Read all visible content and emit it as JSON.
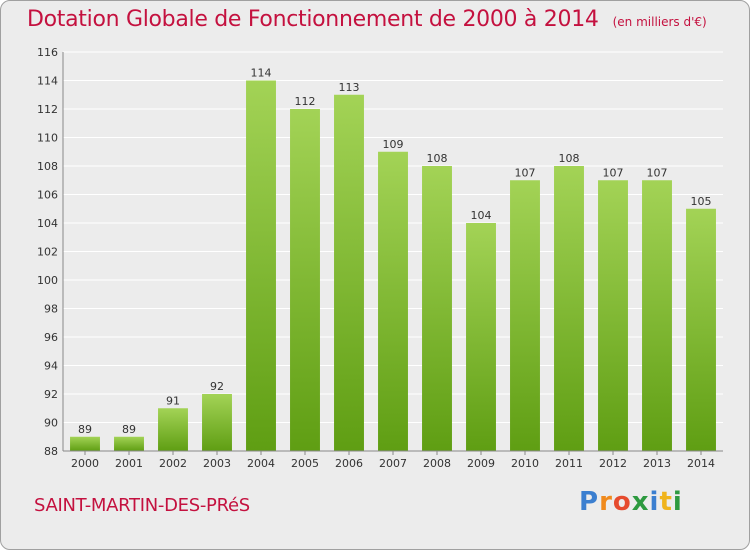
{
  "title": "Dotation Globale de Fonctionnement de 2000 à 2014",
  "unit_note": "(en milliers d'€)",
  "commune": "SAINT-MARTIN-DES-PRéS",
  "logo": "Proxiti",
  "colors": {
    "title": "#c4113f",
    "bar_light": "#a3d356",
    "bar_dark": "#5f9e13",
    "grid": "#ffffff",
    "background": "#ececec"
  },
  "chart_data": {
    "type": "bar",
    "title": "Dotation Globale de Fonctionnement de 2000 à 2014",
    "xlabel": "",
    "ylabel": "",
    "categories": [
      "2000",
      "2001",
      "2002",
      "2003",
      "2004",
      "2005",
      "2006",
      "2007",
      "2008",
      "2009",
      "2010",
      "2011",
      "2012",
      "2013",
      "2014"
    ],
    "values": [
      89,
      89,
      91,
      92,
      114,
      112,
      113,
      109,
      108,
      104,
      107,
      108,
      107,
      107,
      105
    ],
    "ylim": [
      88,
      116
    ],
    "yticks": [
      88,
      90,
      92,
      94,
      96,
      98,
      100,
      102,
      104,
      106,
      108,
      110,
      112,
      114,
      116
    ],
    "grid": true,
    "data_labels": true
  }
}
